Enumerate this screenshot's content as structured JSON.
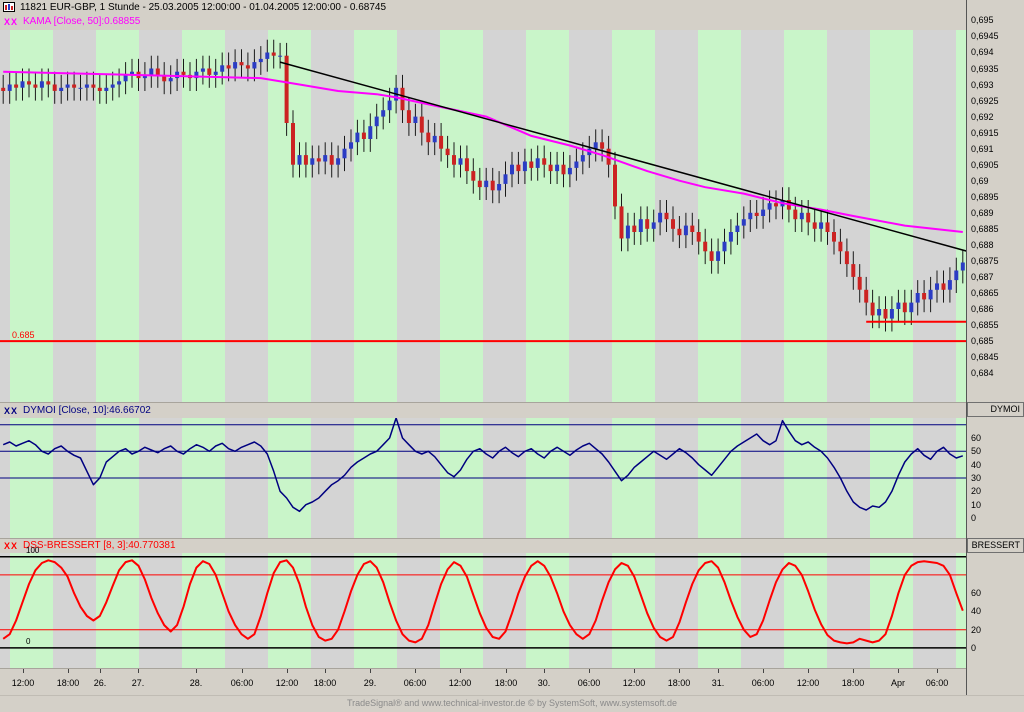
{
  "window": {
    "title": "11821  EUR-GBP, 1 Stunde - 25.03.2005 12:00:00 - 01.04.2005 12:00:00 - 0.68745",
    "status": "TradeSignal® and www.technical-investor.de © by SystemSoft, www.systemsoft.de"
  },
  "colors": {
    "window_bg": "#d4d0c8",
    "stripe_green": "#c9f5c9",
    "stripe_gray": "#d4d4d4",
    "candle_up": "#2b3cc4",
    "candle_down": "#cc2222",
    "wick": "#1a1a1a",
    "kama": "#ff00ff",
    "trendline": "#000000",
    "support": "#ff0000",
    "dymoi": "#000080",
    "bressert": "#ff0000"
  },
  "chart_data": [
    {
      "type": "candlestick",
      "close_marks": "XX",
      "label": "KAMA [Close, 50]:0.68855",
      "symbol": "EUR-GBP",
      "interval": "1 Stunde",
      "last_price": 0.68745,
      "ylim": [
        0.6831,
        0.6952
      ],
      "wick": 0.0004,
      "stripes": {
        "offset": 10,
        "green": 43,
        "period": 86
      },
      "closes": [
        0.6928,
        0.693,
        0.6929,
        0.6931,
        0.693,
        0.6929,
        0.6931,
        0.693,
        0.6928,
        0.6929,
        0.693,
        0.6929,
        0.6929,
        0.693,
        0.6929,
        0.6928,
        0.6929,
        0.693,
        0.6931,
        0.6933,
        0.6934,
        0.6932,
        0.6933,
        0.6935,
        0.6933,
        0.6931,
        0.6932,
        0.6934,
        0.6933,
        0.6932,
        0.6934,
        0.6935,
        0.6933,
        0.6934,
        0.6936,
        0.6935,
        0.6937,
        0.6936,
        0.6935,
        0.6937,
        0.6938,
        0.694,
        0.6939,
        0.6939,
        0.6918,
        0.6905,
        0.6908,
        0.6905,
        0.6907,
        0.6906,
        0.6908,
        0.6905,
        0.6907,
        0.691,
        0.6912,
        0.6915,
        0.6913,
        0.6917,
        0.692,
        0.6922,
        0.6925,
        0.6929,
        0.6922,
        0.6918,
        0.692,
        0.6915,
        0.6912,
        0.6914,
        0.691,
        0.6908,
        0.6905,
        0.6907,
        0.6903,
        0.69,
        0.6898,
        0.69,
        0.6897,
        0.6899,
        0.6902,
        0.6905,
        0.6903,
        0.6906,
        0.6904,
        0.6907,
        0.6905,
        0.6903,
        0.6905,
        0.6902,
        0.6904,
        0.6906,
        0.6908,
        0.691,
        0.6912,
        0.691,
        0.6905,
        0.6892,
        0.6882,
        0.6886,
        0.6884,
        0.6888,
        0.6885,
        0.6887,
        0.689,
        0.6888,
        0.6885,
        0.6883,
        0.6886,
        0.6884,
        0.6881,
        0.6878,
        0.6875,
        0.6878,
        0.6881,
        0.6884,
        0.6886,
        0.6888,
        0.689,
        0.6889,
        0.6891,
        0.6893,
        0.6892,
        0.6894,
        0.6891,
        0.6888,
        0.689,
        0.6887,
        0.6885,
        0.6887,
        0.6884,
        0.6881,
        0.6878,
        0.6874,
        0.687,
        0.6866,
        0.6862,
        0.6858,
        0.686,
        0.6857,
        0.686,
        0.6862,
        0.6859,
        0.6862,
        0.6865,
        0.6863,
        0.6866,
        0.6868,
        0.6866,
        0.6869,
        0.6872,
        0.68745
      ],
      "kama": [
        [
          0,
          0.6934
        ],
        [
          20,
          0.6933
        ],
        [
          40,
          0.6932
        ],
        [
          46,
          0.693
        ],
        [
          52,
          0.6928
        ],
        [
          58,
          0.6927
        ],
        [
          61,
          0.6926
        ],
        [
          68,
          0.6923
        ],
        [
          75,
          0.692
        ],
        [
          82,
          0.6914
        ],
        [
          88,
          0.6911
        ],
        [
          93,
          0.6908
        ],
        [
          100,
          0.6903
        ],
        [
          105,
          0.69
        ],
        [
          109,
          0.6898
        ],
        [
          115,
          0.6896
        ],
        [
          121,
          0.6893
        ],
        [
          127,
          0.6891
        ],
        [
          132,
          0.6889
        ],
        [
          140,
          0.6886
        ],
        [
          149,
          0.6884
        ]
      ],
      "trendline": {
        "from": [
          43,
          0.6937
        ],
        "to": [
          149.7,
          0.6878
        ]
      },
      "hlines": [
        {
          "v": 0.685,
          "label": "0.685"
        },
        {
          "v": 0.6856,
          "from_bar": 134
        }
      ],
      "yticks": [
        {
          "v": 0.695,
          "t": "0,695"
        },
        {
          "v": 0.6945,
          "t": "0,6945"
        },
        {
          "v": 0.694,
          "t": "0,694"
        },
        {
          "v": 0.6935,
          "t": "0,6935"
        },
        {
          "v": 0.693,
          "t": "0,693"
        },
        {
          "v": 0.6925,
          "t": "0,6925"
        },
        {
          "v": 0.692,
          "t": "0,692"
        },
        {
          "v": 0.6915,
          "t": "0,6915"
        },
        {
          "v": 0.691,
          "t": "0,691"
        },
        {
          "v": 0.6905,
          "t": "0,6905"
        },
        {
          "v": 0.69,
          "t": "0,69"
        },
        {
          "v": 0.6895,
          "t": "0,6895"
        },
        {
          "v": 0.689,
          "t": "0,689"
        },
        {
          "v": 0.6885,
          "t": "0,6885"
        },
        {
          "v": 0.688,
          "t": "0,688"
        },
        {
          "v": 0.6875,
          "t": "0,6875"
        },
        {
          "v": 0.687,
          "t": "0,687"
        },
        {
          "v": 0.6865,
          "t": "0,6865"
        },
        {
          "v": 0.686,
          "t": "0,686"
        },
        {
          "v": 0.6855,
          "t": "0,6855"
        },
        {
          "v": 0.685,
          "t": "0,685"
        },
        {
          "v": 0.6845,
          "t": "0,6845"
        },
        {
          "v": 0.684,
          "t": "0,684"
        }
      ],
      "x_labels": [
        {
          "t": "12:00",
          "b": 3
        },
        {
          "t": "18:00",
          "b": 10
        },
        {
          "t": "26.",
          "b": 15
        },
        {
          "t": "27.",
          "b": 21
        },
        {
          "t": "28.",
          "b": 30
        },
        {
          "t": "06:00",
          "b": 37
        },
        {
          "t": "12:00",
          "b": 44
        },
        {
          "t": "18:00",
          "b": 50
        },
        {
          "t": "29.",
          "b": 57
        },
        {
          "t": "06:00",
          "b": 64
        },
        {
          "t": "12:00",
          "b": 71
        },
        {
          "t": "18:00",
          "b": 78
        },
        {
          "t": "30.",
          "b": 84
        },
        {
          "t": "06:00",
          "b": 91
        },
        {
          "t": "12:00",
          "b": 98
        },
        {
          "t": "18:00",
          "b": 105
        },
        {
          "t": "31.",
          "b": 111
        },
        {
          "t": "06:00",
          "b": 118
        },
        {
          "t": "12:00",
          "b": 125
        },
        {
          "t": "18:00",
          "b": 132
        },
        {
          "t": "Apr",
          "b": 139
        },
        {
          "t": "06:00",
          "b": 145
        }
      ]
    },
    {
      "type": "line",
      "close_marks": "XX",
      "label": "DYMOI [Close, 10]:46.66702",
      "axis_title": "DYMOI",
      "last_value": 46.66702,
      "ylim": [
        -15,
        75
      ],
      "bands": [
        70,
        50,
        30
      ],
      "yticks": [
        {
          "v": 60,
          "t": "60"
        },
        {
          "v": 50,
          "t": "50"
        },
        {
          "v": 40,
          "t": "40"
        },
        {
          "v": 30,
          "t": "30"
        },
        {
          "v": 20,
          "t": "20"
        },
        {
          "v": 10,
          "t": "10"
        },
        {
          "v": 0,
          "t": "0"
        }
      ],
      "values": [
        55,
        57,
        54,
        56,
        58,
        55,
        50,
        48,
        52,
        54,
        50,
        47,
        45,
        35,
        25,
        30,
        42,
        46,
        50,
        52,
        48,
        50,
        53,
        51,
        49,
        52,
        54,
        50,
        48,
        52,
        55,
        53,
        50,
        54,
        56,
        52,
        50,
        53,
        55,
        57,
        54,
        48,
        35,
        20,
        15,
        8,
        5,
        10,
        12,
        15,
        20,
        25,
        28,
        32,
        38,
        42,
        45,
        48,
        50,
        55,
        60,
        75,
        60,
        55,
        50,
        48,
        50,
        46,
        40,
        34,
        31,
        36,
        44,
        50,
        52,
        48,
        45,
        50,
        53,
        49,
        46,
        50,
        52,
        48,
        45,
        50,
        53,
        50,
        47,
        51,
        54,
        56,
        52,
        48,
        42,
        35,
        28,
        32,
        38,
        42,
        46,
        50,
        47,
        44,
        48,
        52,
        49,
        45,
        40,
        36,
        32,
        38,
        44,
        50,
        54,
        57,
        60,
        63,
        58,
        55,
        58,
        73,
        65,
        58,
        55,
        57,
        53,
        50,
        45,
        38,
        30,
        20,
        12,
        8,
        6,
        9,
        8,
        12,
        20,
        32,
        42,
        48,
        52,
        47,
        44,
        50,
        53,
        48,
        45,
        46.67
      ]
    },
    {
      "type": "line",
      "close_marks": "XX",
      "label": "DSS-BRESSERT [8, 3]:40.770381",
      "axis_title": "BRESSERT",
      "last_value": 40.770381,
      "ylim": [
        -22,
        104
      ],
      "black_lines": [
        100,
        0
      ],
      "red_lines": [
        80,
        20
      ],
      "left_labels": [
        {
          "t": "100",
          "v": 100
        },
        {
          "t": "0",
          "v": 0
        }
      ],
      "yticks": [
        {
          "v": 60,
          "t": "60"
        },
        {
          "v": 40,
          "t": "40"
        },
        {
          "v": 20,
          "t": "20"
        },
        {
          "v": 0,
          "t": "0"
        }
      ],
      "values": [
        10,
        15,
        30,
        50,
        70,
        85,
        93,
        96,
        94,
        88,
        78,
        60,
        45,
        35,
        30,
        35,
        50,
        68,
        85,
        94,
        96,
        90,
        75,
        55,
        38,
        25,
        18,
        25,
        45,
        70,
        88,
        95,
        92,
        80,
        60,
        40,
        25,
        15,
        10,
        15,
        35,
        60,
        82,
        94,
        96,
        88,
        70,
        45,
        25,
        12,
        8,
        10,
        20,
        40,
        62,
        80,
        92,
        95,
        88,
        72,
        50,
        30,
        15,
        8,
        6,
        10,
        25,
        48,
        70,
        86,
        94,
        90,
        78,
        58,
        38,
        22,
        12,
        10,
        18,
        38,
        60,
        78,
        90,
        95,
        90,
        78,
        60,
        40,
        25,
        15,
        10,
        15,
        30,
        52,
        72,
        86,
        93,
        90,
        78,
        58,
        38,
        22,
        12,
        8,
        12,
        28,
        50,
        70,
        85,
        93,
        95,
        88,
        72,
        52,
        34,
        20,
        12,
        15,
        30,
        52,
        72,
        86,
        93,
        90,
        80,
        62,
        42,
        26,
        14,
        8,
        6,
        5,
        6,
        10,
        8,
        6,
        8,
        15,
        35,
        60,
        80,
        90,
        94,
        95,
        94,
        93,
        90,
        80,
        60,
        40.77
      ]
    }
  ]
}
